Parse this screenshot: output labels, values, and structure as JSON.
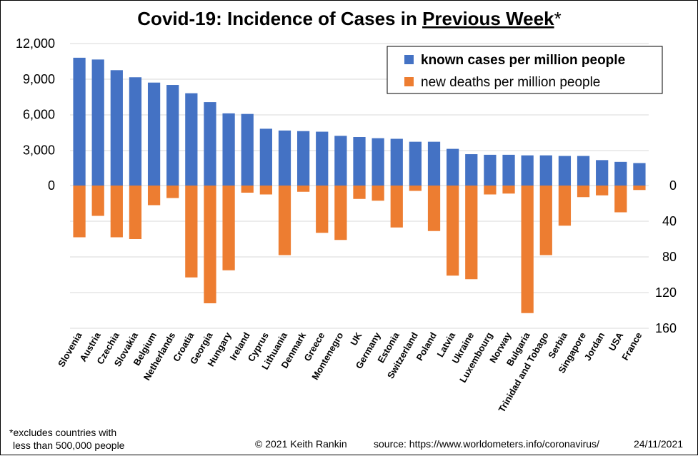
{
  "title": {
    "main": "Covid-19: Incidence of Cases in ",
    "underlined": "Previous Week",
    "suffix": "*"
  },
  "footer": {
    "note_line1": "*excludes  countries with",
    "note_line2": "less than 500,000 people",
    "copyright": "© 2021  Keith  Rankin",
    "source": "source:  https://www.worldometers.info/coronavirus/",
    "date": "24/11/2021"
  },
  "colors": {
    "cases": "#4472c4",
    "deaths": "#ed7d31",
    "grid": "#d9d9d9"
  },
  "chart_data": {
    "type": "bar",
    "categories": [
      "Slovenia",
      "Austria",
      "Czechia",
      "Slovakia",
      "Belgium",
      "Netherlands",
      "Croatia",
      "Georgia",
      "Hungary",
      "Ireland",
      "Cyprus",
      "Lithuania",
      "Denmark",
      "Greece",
      "Montenegro",
      "UK",
      "Germany",
      "Estonia",
      "Switzerland",
      "Poland",
      "Latvia",
      "Ukraine",
      "Luxembourg",
      "Norway",
      "Bulgaria",
      "Trinidad and Tobago",
      "Serbia",
      "Singapore",
      "Jordan",
      "USA",
      "France"
    ],
    "series": [
      {
        "name": "known cases per million people",
        "axis": "left",
        "values": [
          10800,
          10650,
          9750,
          9150,
          8700,
          8500,
          7800,
          7050,
          6100,
          6050,
          4800,
          4650,
          4600,
          4550,
          4200,
          4100,
          4000,
          3950,
          3700,
          3700,
          3100,
          2650,
          2600,
          2600,
          2550,
          2550,
          2500,
          2500,
          2150,
          2000,
          1900
        ]
      },
      {
        "name": "new deaths per million people",
        "axis": "right",
        "values": [
          58,
          34,
          58,
          60,
          22,
          14,
          103,
          132,
          95,
          8,
          10,
          78,
          7,
          53,
          61,
          15,
          17,
          47,
          6,
          51,
          101,
          105,
          10,
          9,
          143,
          78,
          45,
          13,
          11,
          30,
          5
        ]
      }
    ],
    "left_axis": {
      "ticks": [
        "0",
        "3,000",
        "6,000",
        "9,000",
        "12,000"
      ],
      "tick_values": [
        0,
        3000,
        6000,
        9000,
        12000
      ],
      "max": 12000
    },
    "right_axis": {
      "ticks": [
        "0",
        "40",
        "80",
        "120",
        "160"
      ],
      "tick_values": [
        0,
        40,
        80,
        120,
        160
      ],
      "max": 160
    },
    "grid": true,
    "legend_position": "top-right"
  }
}
